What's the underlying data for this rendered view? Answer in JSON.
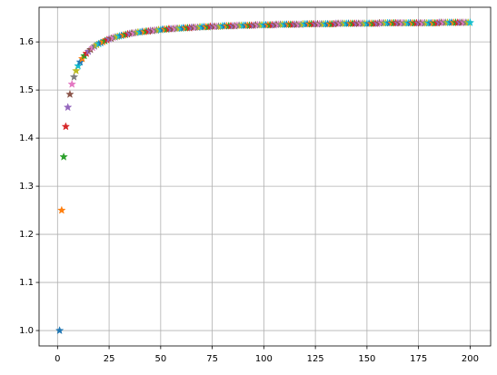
{
  "chart_data": {
    "type": "scatter",
    "marker": "star",
    "x": [
      1,
      2,
      3,
      4,
      5,
      6,
      7,
      8,
      9,
      10,
      11,
      12,
      13,
      14,
      15,
      16,
      17,
      18,
      19,
      20,
      21,
      22,
      23,
      24,
      25,
      26,
      27,
      28,
      29,
      30,
      31,
      32,
      33,
      34,
      35,
      36,
      37,
      38,
      39,
      40,
      41,
      42,
      43,
      44,
      45,
      46,
      47,
      48,
      49,
      50,
      51,
      52,
      53,
      54,
      55,
      56,
      57,
      58,
      59,
      60,
      61,
      62,
      63,
      64,
      65,
      66,
      67,
      68,
      69,
      70,
      71,
      72,
      73,
      74,
      75,
      76,
      77,
      78,
      79,
      80,
      81,
      82,
      83,
      84,
      85,
      86,
      87,
      88,
      89,
      90,
      91,
      92,
      93,
      94,
      95,
      96,
      97,
      98,
      99,
      100,
      101,
      102,
      103,
      104,
      105,
      106,
      107,
      108,
      109,
      110,
      111,
      112,
      113,
      114,
      115,
      116,
      117,
      118,
      119,
      120,
      121,
      122,
      123,
      124,
      125,
      126,
      127,
      128,
      129,
      130,
      131,
      132,
      133,
      134,
      135,
      136,
      137,
      138,
      139,
      140,
      141,
      142,
      143,
      144,
      145,
      146,
      147,
      148,
      149,
      150,
      151,
      152,
      153,
      154,
      155,
      156,
      157,
      158,
      159,
      160,
      161,
      162,
      163,
      164,
      165,
      166,
      167,
      168,
      169,
      170,
      171,
      172,
      173,
      174,
      175,
      176,
      177,
      178,
      179,
      180,
      181,
      182,
      183,
      184,
      185,
      186,
      187,
      188,
      189,
      190,
      191,
      192,
      193,
      194,
      195,
      196,
      197,
      198,
      199,
      200
    ],
    "values": [
      1,
      1.25,
      1.361,
      1.424,
      1.464,
      1.491,
      1.512,
      1.527,
      1.54,
      1.55,
      1.558,
      1.565,
      1.571,
      1.576,
      1.58,
      1.584,
      1.588,
      1.591,
      1.594,
      1.596,
      1.598,
      1.6,
      1.602,
      1.604,
      1.606,
      1.607,
      1.609,
      1.61,
      1.611,
      1.612,
      1.613,
      1.614,
      1.615,
      1.616,
      1.617,
      1.618,
      1.618,
      1.619,
      1.62,
      1.62,
      1.621,
      1.621,
      1.622,
      1.622,
      1.623,
      1.623,
      1.624,
      1.624,
      1.625,
      1.625,
      1.626,
      1.626,
      1.626,
      1.627,
      1.627,
      1.627,
      1.628,
      1.628,
      1.628,
      1.628,
      1.629,
      1.629,
      1.629,
      1.629,
      1.63,
      1.63,
      1.63,
      1.63,
      1.631,
      1.631,
      1.631,
      1.631,
      1.631,
      1.632,
      1.632,
      1.632,
      1.632,
      1.632,
      1.632,
      1.633,
      1.633,
      1.633,
      1.633,
      1.633,
      1.633,
      1.633,
      1.634,
      1.634,
      1.634,
      1.634,
      1.634,
      1.634,
      1.634,
      1.634,
      1.634,
      1.635,
      1.635,
      1.635,
      1.635,
      1.635,
      1.635,
      1.635,
      1.635,
      1.635,
      1.635,
      1.636,
      1.636,
      1.636,
      1.636,
      1.636,
      1.636,
      1.636,
      1.636,
      1.636,
      1.636,
      1.636,
      1.636,
      1.636,
      1.637,
      1.637,
      1.637,
      1.637,
      1.637,
      1.637,
      1.637,
      1.637,
      1.637,
      1.637,
      1.637,
      1.637,
      1.637,
      1.637,
      1.637,
      1.637,
      1.638,
      1.638,
      1.638,
      1.638,
      1.638,
      1.638,
      1.638,
      1.638,
      1.638,
      1.638,
      1.638,
      1.638,
      1.638,
      1.638,
      1.638,
      1.638,
      1.638,
      1.638,
      1.638,
      1.638,
      1.638,
      1.639,
      1.639,
      1.639,
      1.639,
      1.639,
      1.639,
      1.639,
      1.639,
      1.639,
      1.639,
      1.639,
      1.639,
      1.639,
      1.639,
      1.639,
      1.639,
      1.639,
      1.639,
      1.639,
      1.639,
      1.639,
      1.639,
      1.639,
      1.639,
      1.639,
      1.639,
      1.639,
      1.639,
      1.639,
      1.64,
      1.64,
      1.64,
      1.64,
      1.64,
      1.64,
      1.64,
      1.64,
      1.64,
      1.64,
      1.64,
      1.64,
      1.64,
      1.64,
      1.64,
      1.64
    ],
    "colors": [
      "#1f77b4",
      "#ff7f0e",
      "#2ca02c",
      "#d62728",
      "#9467bd",
      "#8c564b",
      "#e377c2",
      "#7f7f7f",
      "#bcbd22",
      "#17becf"
    ],
    "xlim": [
      -8.95,
      209.95
    ],
    "ylim": [
      0.968,
      1.672
    ],
    "xticks": [
      0,
      25,
      50,
      75,
      100,
      125,
      150,
      175,
      200
    ],
    "yticks": [
      {
        "value": 1,
        "label": "1.0"
      },
      {
        "value": 1.1,
        "label": "1.1"
      },
      {
        "value": 1.2,
        "label": "1.2"
      },
      {
        "value": 1.3,
        "label": "1.3"
      },
      {
        "value": 1.4,
        "label": "1.4"
      },
      {
        "value": 1.5,
        "label": "1.5"
      },
      {
        "value": 1.6,
        "label": "1.6"
      }
    ],
    "grid": true
  }
}
